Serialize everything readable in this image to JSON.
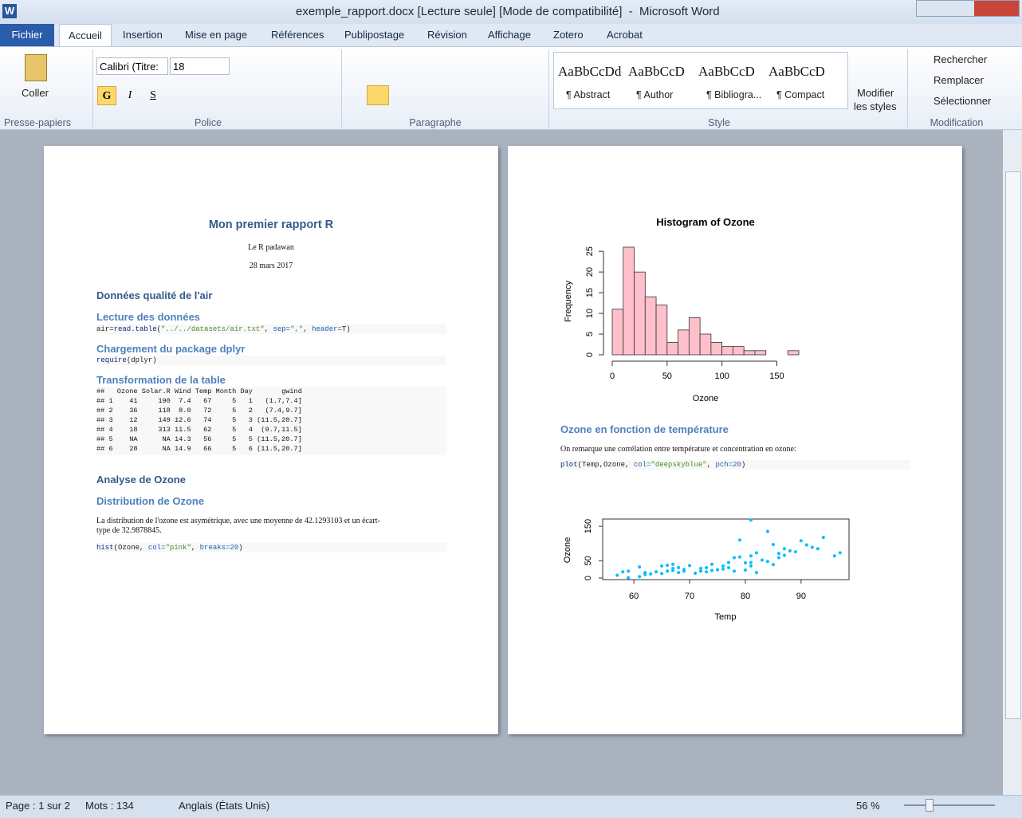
{
  "window": {
    "title": "exemple_rapport.docx [Lecture seule] [Mode de compatibilité]  -  Microsoft Word"
  },
  "tabs": [
    "Fichier",
    "Accueil",
    "Insertion",
    "Mise en page",
    "Références",
    "Publipostage",
    "Révision",
    "Affichage",
    "Zotero",
    "Acrobat"
  ],
  "ribbon": {
    "paste": "Coller",
    "font_name": "Calibri (Titre:",
    "font_size": "18",
    "format_buttons": [
      "G",
      "I",
      "S"
    ],
    "styles": [
      {
        "sample": "AaBbCcDd",
        "name": "¶ Abstract"
      },
      {
        "sample": "AaBbCcD",
        "name": "¶ Author"
      },
      {
        "sample": "AaBbCcD",
        "name": "¶ Bibliogra..."
      },
      {
        "sample": "AaBbCcD",
        "name": "¶ Compact"
      }
    ],
    "change_styles": [
      "Modifier",
      "les styles"
    ],
    "editing": [
      "Rechercher",
      "Remplacer",
      "Sélectionner"
    ],
    "groups": [
      "Presse-papiers",
      "Police",
      "Paragraphe",
      "Style",
      "Modification"
    ]
  },
  "page1": {
    "title": "Mon premier rapport R",
    "author": "Le R padawan",
    "date": "28 mars 2017",
    "h1_air": "Données qualité de l'air",
    "h2_read": "Lecture des données",
    "code_read": [
      {
        "text": "air=",
        "kind": "plain"
      },
      {
        "text": "read.table",
        "kind": "fn"
      },
      {
        "text": "(",
        "kind": "plain"
      },
      {
        "text": "\"../../datasets/air.txt\"",
        "kind": "str"
      },
      {
        "text": ", ",
        "kind": "plain"
      },
      {
        "text": "sep=",
        "kind": "arg"
      },
      {
        "text": "\",\"",
        "kind": "str"
      },
      {
        "text": ", ",
        "kind": "plain"
      },
      {
        "text": "header=",
        "kind": "arg"
      },
      {
        "text": "T)",
        "kind": "plain"
      }
    ],
    "h2_pkg": "Chargement du package dplyr",
    "code_pkg": [
      {
        "text": "require",
        "kind": "fn"
      },
      {
        "text": "(dplyr)",
        "kind": "plain"
      }
    ],
    "h2_transform": "Transformation de la table",
    "output": [
      "##   Ozone Solar.R Wind Temp Month Day       gwind",
      "## 1    41     190  7.4   67     5   1   (1.7,7.4]",
      "## 2    36     118  8.0   72     5   2   (7.4,9.7]",
      "## 3    12     149 12.6   74     5   3 (11.5,20.7]",
      "## 4    18     313 11.5   62     5   4  (9.7,11.5]",
      "## 5    NA      NA 14.3   56     5   5 (11.5,20.7]",
      "## 6    28      NA 14.9   66     5   6 (11.5,20.7]"
    ],
    "h1_ozone": "Analyse de Ozone",
    "h2_dist": "Distribution de Ozone",
    "para": [
      "La distribution de l'ozone est asymétrique, avec une moyenne de 42.1293103 et un écart-",
      "type de 32.9878845."
    ],
    "code_hist": [
      {
        "text": "hist",
        "kind": "fn"
      },
      {
        "text": "(Ozone, ",
        "kind": "plain"
      },
      {
        "text": "col=",
        "kind": "arg"
      },
      {
        "text": "\"pink\"",
        "kind": "str"
      },
      {
        "text": ", ",
        "kind": "plain"
      },
      {
        "text": "breaks=",
        "kind": "arg"
      },
      {
        "text": "20",
        "kind": "num"
      },
      {
        "text": ")",
        "kind": "plain"
      }
    ]
  },
  "page2": {
    "histogram": {
      "type": "histogram",
      "title": "Histogram of Ozone",
      "x_label": "Ozone",
      "y_label": "Frequency",
      "bins": [
        0,
        10,
        20,
        30,
        40,
        50,
        60,
        70,
        80,
        90,
        100,
        110,
        120,
        130,
        140,
        150,
        160,
        170
      ],
      "counts": [
        11,
        26,
        20,
        14,
        12,
        3,
        6,
        9,
        5,
        3,
        2,
        2,
        1,
        1,
        0,
        0,
        1
      ],
      "color": "#ffc0cb",
      "xlim": [
        0,
        170
      ],
      "xticks": [
        0,
        50,
        100,
        150
      ],
      "ylim": [
        0,
        26
      ],
      "yticks": [
        0,
        5,
        10,
        15,
        20,
        25
      ]
    },
    "h2_temp": "Ozone en fonction de température",
    "para": "On remarque une corrélation entre température et concentration en ozone:",
    "code_plot": [
      {
        "text": "plot",
        "kind": "fn"
      },
      {
        "text": "(Temp,Ozone, ",
        "kind": "plain"
      },
      {
        "text": "col=",
        "kind": "arg"
      },
      {
        "text": "\"deepskyblue\"",
        "kind": "str"
      },
      {
        "text": ", ",
        "kind": "plain"
      },
      {
        "text": "pch=",
        "kind": "arg"
      },
      {
        "text": "20",
        "kind": "num"
      },
      {
        "text": ")",
        "kind": "plain"
      }
    ],
    "scatter": {
      "type": "scatter",
      "x_label": "Temp",
      "y_label": "Ozone",
      "color": "#00bfff",
      "x": [
        57,
        58,
        59,
        59,
        61,
        61,
        62,
        62,
        63,
        64,
        65,
        65,
        66,
        66,
        67,
        67,
        67,
        68,
        68,
        69,
        69,
        70,
        71,
        72,
        72,
        73,
        73,
        74,
        74,
        75,
        76,
        76,
        77,
        77,
        78,
        78,
        79,
        79,
        80,
        80,
        81,
        81,
        81,
        81,
        82,
        82,
        83,
        84,
        84,
        85,
        85,
        86,
        86,
        87,
        87,
        88,
        89,
        90,
        91,
        92,
        93,
        94,
        96,
        97
      ],
      "y": [
        8,
        18,
        1,
        20,
        4,
        32,
        10,
        16,
        12,
        18,
        13,
        35,
        20,
        37,
        22,
        40,
        28,
        30,
        16,
        25,
        20,
        36,
        14,
        20,
        28,
        18,
        30,
        22,
        40,
        24,
        26,
        35,
        45,
        30,
        59,
        20,
        61,
        110,
        44,
        23,
        168,
        35,
        64,
        45,
        16,
        73,
        52,
        135,
        48,
        97,
        39,
        71,
        59,
        85,
        66,
        79,
        76,
        108,
        96,
        89,
        85,
        118,
        64,
        73
      ],
      "xlim": [
        54.4,
        98.6
      ],
      "xticks": [
        60,
        70,
        80,
        90
      ],
      "ylim": [
        -4.6,
        171
      ],
      "yticks": [
        0,
        50,
        150
      ]
    }
  },
  "status": {
    "page": "Page : 1 sur 2",
    "words": "Mots : 134",
    "language": "Anglais (États Unis)",
    "zoom": "56 %"
  }
}
